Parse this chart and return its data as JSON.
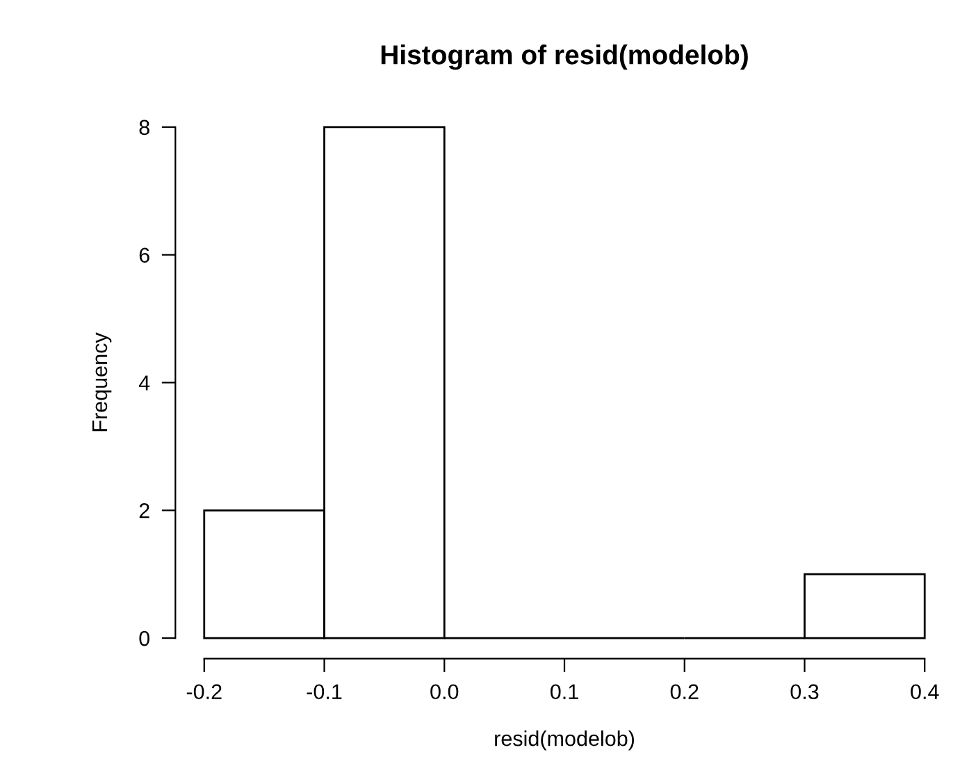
{
  "chart_data": {
    "type": "histogram",
    "title": "Histogram of resid(modelob)",
    "xlabel": "resid(modelob)",
    "ylabel": "Frequency",
    "bins": [
      -0.2,
      -0.1,
      0.0,
      0.1,
      0.2,
      0.3,
      0.4
    ],
    "values": [
      2,
      8,
      0,
      0,
      0,
      1
    ],
    "color": "#000000",
    "xlim": [
      -0.2,
      0.4
    ],
    "xticks": [
      -0.2,
      -0.1,
      {
        "value": 0.0,
        "label": "0.0"
      },
      0.1,
      0.2,
      0.3,
      0.4
    ],
    "ylim": [
      0,
      8
    ],
    "yticks": [
      0,
      2,
      4,
      6,
      8
    ],
    "grid": false
  }
}
